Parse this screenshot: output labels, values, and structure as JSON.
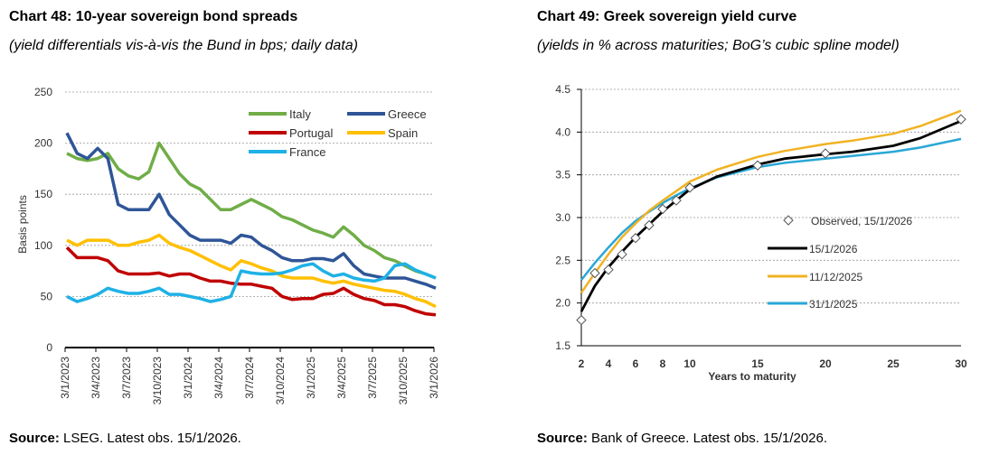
{
  "left": {
    "title": "Chart 48: 10-year sovereign bond spreads",
    "subtitle": "(yield differentials vis-à-vis the Bund in bps; daily data)",
    "source_label": "Source:",
    "source_text": " LSEG. Latest obs. 15/1/2026."
  },
  "right": {
    "title": "Chart 49: Greek sovereign yield curve",
    "subtitle": "(yields in % across maturities; BoG’s cubic spline model)",
    "source_label": "Source:",
    "source_text": " Bank of Greece. Latest obs. 15/1/2026."
  },
  "chart_data": [
    {
      "type": "line",
      "ylabel": "Basis points",
      "ylim": [
        0,
        250
      ],
      "yticks": [
        "0",
        "50",
        "100",
        "150",
        "200",
        "250"
      ],
      "xticks": [
        "3/1/2023",
        "3/4/2023",
        "3/7/2023",
        "3/10/2023",
        "3/1/2024",
        "3/4/2024",
        "3/7/2024",
        "3/10/2024",
        "3/1/2025",
        "3/4/2025",
        "3/7/2025",
        "3/10/2025",
        "3/1/2026"
      ],
      "x": [
        "2023-01",
        "2023-02",
        "2023-03",
        "2023-04",
        "2023-05",
        "2023-06",
        "2023-07",
        "2023-08",
        "2023-09",
        "2023-10",
        "2023-11",
        "2023-12",
        "2024-01",
        "2024-02",
        "2024-03",
        "2024-04",
        "2024-05",
        "2024-06",
        "2024-07",
        "2024-08",
        "2024-09",
        "2024-10",
        "2024-11",
        "2024-12",
        "2025-01",
        "2025-02",
        "2025-03",
        "2025-04",
        "2025-05",
        "2025-06",
        "2025-07",
        "2025-08",
        "2025-09",
        "2025-10",
        "2025-11",
        "2025-12",
        "2026-01"
      ],
      "grid": true,
      "legend": "top-right",
      "series": [
        {
          "name": "Italy",
          "color": "#70AD47",
          "values": [
            190,
            185,
            183,
            185,
            190,
            175,
            168,
            165,
            172,
            200,
            185,
            170,
            160,
            155,
            145,
            135,
            135,
            140,
            145,
            140,
            135,
            128,
            125,
            120,
            115,
            112,
            108,
            118,
            110,
            100,
            95,
            88,
            85,
            80,
            75,
            72,
            68
          ]
        },
        {
          "name": "Greece",
          "color": "#2F5597",
          "values": [
            210,
            190,
            185,
            195,
            185,
            140,
            135,
            135,
            135,
            150,
            130,
            120,
            110,
            105,
            105,
            105,
            102,
            110,
            108,
            100,
            95,
            88,
            85,
            85,
            87,
            87,
            85,
            92,
            80,
            72,
            70,
            68,
            68,
            68,
            65,
            62,
            58
          ]
        },
        {
          "name": "Portugal",
          "color": "#C00000",
          "values": [
            98,
            88,
            88,
            88,
            85,
            75,
            72,
            72,
            72,
            73,
            70,
            72,
            72,
            68,
            65,
            65,
            63,
            62,
            62,
            60,
            58,
            50,
            47,
            48,
            48,
            52,
            53,
            58,
            52,
            48,
            46,
            42,
            42,
            40,
            36,
            33,
            32
          ]
        },
        {
          "name": "Spain",
          "color": "#FFC000",
          "values": [
            105,
            100,
            105,
            105,
            105,
            100,
            100,
            103,
            105,
            110,
            102,
            98,
            95,
            90,
            85,
            80,
            76,
            85,
            82,
            78,
            75,
            70,
            68,
            68,
            68,
            65,
            63,
            65,
            62,
            60,
            58,
            56,
            55,
            52,
            48,
            45,
            40
          ]
        },
        {
          "name": "France",
          "color": "#1FB1E6",
          "values": [
            50,
            45,
            48,
            52,
            58,
            55,
            53,
            53,
            55,
            58,
            52,
            52,
            50,
            48,
            45,
            47,
            50,
            75,
            73,
            72,
            72,
            73,
            76,
            80,
            82,
            75,
            70,
            72,
            68,
            66,
            65,
            68,
            80,
            82,
            76,
            72,
            68
          ]
        }
      ]
    },
    {
      "type": "line",
      "xlabel": "Years to maturity",
      "ylim": [
        1.5,
        4.5
      ],
      "xlim": [
        2,
        30
      ],
      "yticks": [
        "1.5",
        "2.0",
        "2.5",
        "3.0",
        "3.5",
        "4.0",
        "4.5"
      ],
      "xticks": [
        "2",
        "4",
        "6",
        "8",
        "10",
        "15",
        "20",
        "25",
        "30"
      ],
      "grid": true,
      "legend": "center-right",
      "x": [
        2,
        3,
        4,
        5,
        6,
        7,
        8,
        9,
        10,
        12,
        15,
        17,
        20,
        22,
        25,
        27,
        30
      ],
      "series": [
        {
          "name": "15/1/2026",
          "color": "#000000",
          "values": [
            1.9,
            2.2,
            2.42,
            2.6,
            2.77,
            2.92,
            3.07,
            3.2,
            3.33,
            3.48,
            3.62,
            3.69,
            3.74,
            3.77,
            3.84,
            3.93,
            4.13
          ]
        },
        {
          "name": "11/12/2025",
          "color": "#F0B323",
          "values": [
            2.12,
            2.35,
            2.57,
            2.77,
            2.93,
            3.08,
            3.2,
            3.31,
            3.42,
            3.56,
            3.71,
            3.78,
            3.86,
            3.9,
            3.98,
            4.07,
            4.25
          ]
        },
        {
          "name": "31/1/2025",
          "color": "#2AA7D6",
          "values": [
            2.27,
            2.47,
            2.65,
            2.82,
            2.96,
            3.07,
            3.17,
            3.26,
            3.34,
            3.47,
            3.59,
            3.64,
            3.69,
            3.72,
            3.77,
            3.82,
            3.92
          ]
        }
      ],
      "observed": {
        "name": "Observed, 15/1/2026",
        "x": [
          2,
          3,
          4,
          5,
          6,
          7,
          8,
          9,
          10,
          15,
          20,
          30
        ],
        "values": [
          1.8,
          2.35,
          2.39,
          2.57,
          2.76,
          2.91,
          3.1,
          3.2,
          3.35,
          3.61,
          3.75,
          4.15
        ]
      }
    }
  ]
}
